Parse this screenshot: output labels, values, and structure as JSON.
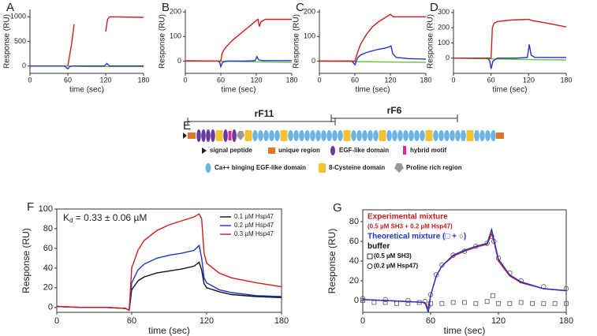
{
  "chart_data": [
    {
      "type": "line",
      "panel": "A",
      "xlabel": "time (sec)",
      "ylabel": "Response (RU)",
      "xlim": [
        0,
        180
      ],
      "xticks": [
        0,
        60,
        120,
        180
      ],
      "ylim": [
        -150,
        1150
      ],
      "yticks": [
        0,
        500,
        1000
      ],
      "series": [
        {
          "color": "#6cc63a",
          "x": [
            0,
            30,
            60,
            90,
            120,
            150,
            180
          ],
          "values": [
            0,
            0,
            0,
            -10,
            -10,
            -10,
            -10
          ]
        },
        {
          "color": "#2233cc",
          "x": [
            0,
            55,
            60,
            63,
            70,
            100,
            118,
            122,
            126,
            180
          ],
          "values": [
            0,
            0,
            -60,
            -10,
            0,
            0,
            0,
            50,
            0,
            0
          ]
        },
        {
          "color": "#cc1f1f",
          "x": [
            60,
            62,
            64,
            66,
            68,
            70,
            95,
            120,
            123,
            126,
            180
          ],
          "values": [
            0,
            150,
            300,
            450,
            650,
            850,
            null,
            700,
            950,
            1000,
            990
          ]
        }
      ]
    },
    {
      "type": "line",
      "panel": "B",
      "xlabel": "time (sec)",
      "ylabel": "Response (RU)",
      "xlim": [
        0,
        180
      ],
      "xticks": [
        0,
        60,
        120,
        180
      ],
      "ylim": [
        -50,
        210
      ],
      "yticks": [
        0,
        100,
        200
      ],
      "series": [
        {
          "color": "#6cc63a",
          "x": [
            0,
            60,
            120,
            180
          ],
          "values": [
            2,
            0,
            -3,
            -5
          ]
        },
        {
          "color": "#2233cc",
          "x": [
            0,
            55,
            58,
            60,
            63,
            70,
            100,
            118,
            121,
            124,
            130,
            180
          ],
          "values": [
            0,
            0,
            -5,
            -22,
            -5,
            0,
            0,
            2,
            18,
            5,
            2,
            2
          ]
        },
        {
          "color": "#cc1f1f",
          "x": [
            0,
            55,
            60,
            62,
            65,
            70,
            80,
            90,
            100,
            110,
            120,
            123,
            125,
            128,
            135,
            150,
            180
          ],
          "values": [
            0,
            0,
            0,
            30,
            45,
            60,
            85,
            105,
            125,
            145,
            165,
            170,
            140,
            160,
            170,
            170,
            170
          ]
        }
      ]
    },
    {
      "type": "line",
      "panel": "C",
      "xlabel": "time (sec)",
      "ylabel": "Response (RU)",
      "xlim": [
        0,
        180
      ],
      "xticks": [
        0,
        60,
        120,
        180
      ],
      "ylim": [
        -50,
        210
      ],
      "yticks": [
        0,
        100,
        200
      ],
      "series": [
        {
          "color": "#6cc63a",
          "x": [
            0,
            60,
            120,
            180
          ],
          "values": [
            0,
            -2,
            -4,
            -5
          ]
        },
        {
          "color": "#2233cc",
          "x": [
            0,
            55,
            60,
            65,
            70,
            80,
            90,
            100,
            110,
            118,
            121,
            124,
            130,
            150,
            180
          ],
          "values": [
            0,
            0,
            -15,
            15,
            25,
            35,
            42,
            48,
            52,
            58,
            62,
            30,
            15,
            10,
            8
          ]
        },
        {
          "color": "#cc1f1f",
          "x": [
            0,
            55,
            60,
            65,
            70,
            80,
            90,
            100,
            110,
            120,
            125,
            130,
            180
          ],
          "values": [
            0,
            0,
            0,
            40,
            70,
            110,
            140,
            160,
            175,
            190,
            180,
            180,
            180
          ]
        }
      ]
    },
    {
      "type": "line",
      "panel": "D",
      "xlabel": "time (sec)",
      "ylabel": "Response (RU)",
      "xlim": [
        0,
        180
      ],
      "xticks": [
        0,
        60,
        120,
        180
      ],
      "ylim": [
        -100,
        320
      ],
      "yticks": [
        0,
        100,
        200,
        300
      ],
      "series": [
        {
          "color": "#6cc63a",
          "x": [
            0,
            60,
            120,
            180
          ],
          "values": [
            0,
            -5,
            -10,
            -12
          ]
        },
        {
          "color": "#2233cc",
          "x": [
            0,
            55,
            58,
            60,
            63,
            70,
            100,
            118,
            121,
            124,
            130,
            180
          ],
          "values": [
            0,
            0,
            -20,
            -70,
            -20,
            0,
            0,
            5,
            90,
            20,
            5,
            5
          ]
        },
        {
          "color": "#cc1f1f",
          "x": [
            0,
            55,
            60,
            62,
            65,
            70,
            90,
            120,
            125,
            150,
            180
          ],
          "values": [
            0,
            0,
            0,
            200,
            230,
            240,
            250,
            255,
            248,
            230,
            205
          ]
        }
      ]
    },
    {
      "type": "line",
      "panel": "F",
      "xlabel": "time (sec)",
      "ylabel": "Response (RU)",
      "xlim": [
        0,
        180
      ],
      "xticks": [
        0,
        60,
        120,
        180
      ],
      "ylim": [
        -5,
        100
      ],
      "yticks": [
        0,
        20,
        40,
        60,
        80,
        100
      ],
      "frame": true,
      "legend": "upper right",
      "annotation": {
        "main": "K",
        "sub": "d",
        "rest": " = 0.33 ± 0.06 µM"
      },
      "series": [
        {
          "name": "0.1 µM Hsp47",
          "color": "#111111",
          "x": [
            0,
            20,
            40,
            55,
            58,
            60,
            65,
            70,
            80,
            90,
            100,
            110,
            114,
            116,
            118,
            120,
            130,
            140,
            160,
            180
          ],
          "values": [
            1,
            0,
            0,
            -1,
            -3,
            18,
            27,
            31,
            35,
            37,
            39,
            42,
            46,
            38,
            24,
            20,
            16,
            13,
            11,
            10
          ]
        },
        {
          "name": "0.2 µM Hsp47",
          "color": "#2233cc",
          "x": [
            0,
            20,
            40,
            55,
            58,
            60,
            65,
            70,
            80,
            90,
            100,
            110,
            114,
            116,
            118,
            120,
            130,
            140,
            160,
            180
          ],
          "values": [
            1,
            0,
            0,
            -1,
            -3,
            25,
            38,
            44,
            50,
            53,
            55,
            58,
            63,
            50,
            30,
            25,
            18,
            15,
            12,
            11
          ]
        },
        {
          "name": "0.3 µM Hsp47",
          "color": "#cc1f1f",
          "x": [
            0,
            20,
            40,
            55,
            58,
            60,
            65,
            70,
            80,
            90,
            100,
            110,
            114,
            116,
            118,
            120,
            130,
            140,
            160,
            180
          ],
          "values": [
            1,
            0,
            0,
            -1,
            -3,
            40,
            58,
            68,
            78,
            84,
            88,
            92,
            95,
            90,
            55,
            45,
            35,
            30,
            25,
            21
          ]
        }
      ]
    },
    {
      "type": "line",
      "panel": "G",
      "xlabel": "time (sec)",
      "ylabel": "Response (RU)",
      "xlim": [
        0,
        180
      ],
      "xticks": [
        0,
        60,
        120,
        180
      ],
      "ylim": [
        -12,
        92
      ],
      "yticks": [
        0,
        20,
        40,
        60,
        80
      ],
      "frame": true,
      "legend": "upper left",
      "notes": [
        "(0.5 µM SH3 + 0.2 µM Hsp47)",
        "buffer"
      ],
      "series": [
        {
          "name": "(0.5 µM SH3)",
          "marker": "square",
          "color": "#555555",
          "x": [
            0,
            10,
            20,
            30,
            40,
            50,
            60,
            70,
            80,
            90,
            100,
            110,
            115,
            120,
            130,
            140,
            150,
            160,
            170,
            180
          ],
          "values": [
            0,
            -2,
            -2,
            -3,
            -3,
            -2,
            -3,
            -3,
            -2,
            -2,
            -3,
            -1,
            5,
            -3,
            -3,
            -2,
            -3,
            -3,
            -3,
            -3
          ]
        },
        {
          "name": "(0.2 µM Hsp47)",
          "marker": "circle",
          "color": "#555555",
          "x": [
            0,
            20,
            40,
            55,
            58,
            60,
            65,
            70,
            80,
            90,
            100,
            110,
            114,
            116,
            120,
            130,
            140,
            160,
            180
          ],
          "values": [
            2,
            1,
            0,
            -1,
            -6,
            6,
            26,
            36,
            46,
            50,
            55,
            58,
            65,
            60,
            43,
            28,
            20,
            14,
            12
          ]
        },
        {
          "name": "Experimental mixture",
          "color": "#cc1f1f",
          "x": [
            0,
            20,
            40,
            55,
            58,
            60,
            65,
            70,
            80,
            90,
            100,
            110,
            114,
            116,
            120,
            130,
            140,
            160,
            180
          ],
          "values": [
            1,
            0,
            -1,
            -2,
            -8,
            5,
            25,
            35,
            45,
            50,
            54,
            57,
            68,
            60,
            40,
            25,
            18,
            12,
            10
          ]
        },
        {
          "name": "Theoretical mixture (□ + ○)",
          "color": "#2233cc",
          "x": [
            0,
            20,
            40,
            55,
            58,
            60,
            65,
            70,
            80,
            90,
            100,
            110,
            114,
            116,
            120,
            130,
            140,
            160,
            180
          ],
          "values": [
            1,
            0,
            -1,
            -2,
            -12,
            5,
            25,
            35,
            46,
            51,
            55,
            58,
            72,
            62,
            42,
            26,
            19,
            12,
            10
          ]
        }
      ]
    }
  ],
  "diagram": {
    "panel": "E",
    "brackets": [
      "rF11",
      "rF6"
    ],
    "legend": [
      "signal peptide",
      "unique region",
      "EGF-like domain",
      "hybrid motif",
      "Ca++ binging EGF-like domain",
      "8-Cysteine domain",
      "Proline rich region"
    ]
  }
}
